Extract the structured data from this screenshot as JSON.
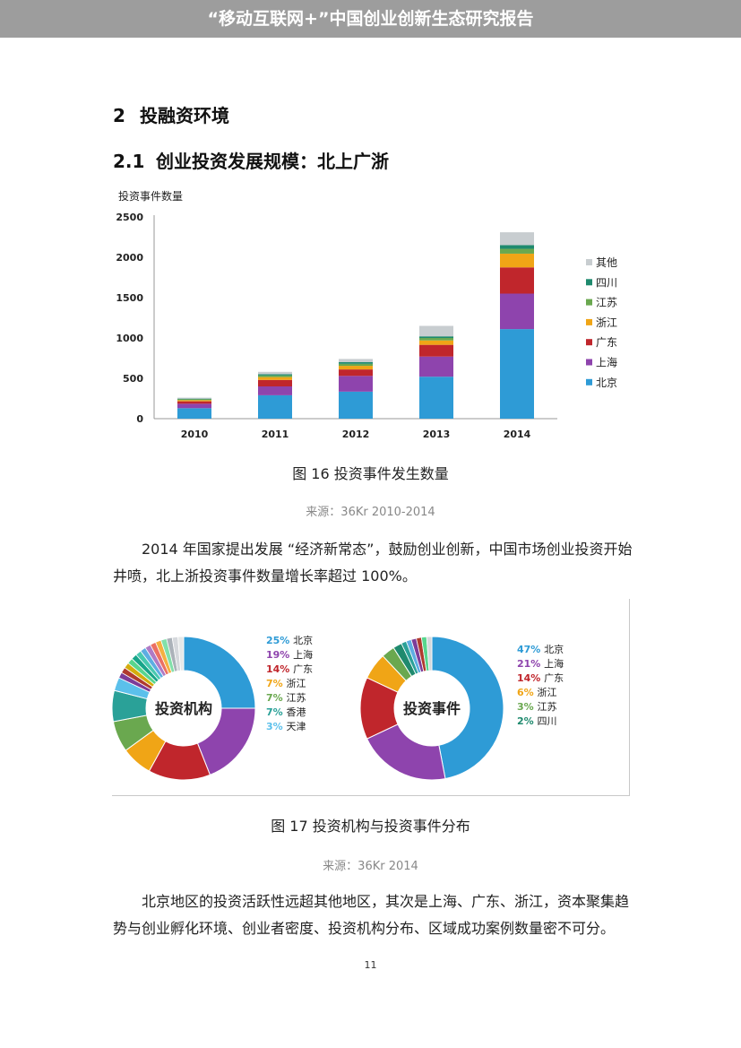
{
  "header": {
    "title": "“移动互联网+”中国创业创新生态研究报告"
  },
  "section": {
    "number": "2",
    "title": "投融资环境"
  },
  "subsection": {
    "number": "2.1",
    "title": "创业投资发展规模：北上广浙"
  },
  "fig16": {
    "caption": "图 16  投资事件发生数量",
    "source": "来源：36Kr 2010-2014"
  },
  "para1": "2014 年国家提出发展 “经济新常态”，鼓励创业创新，中国市场创业投资开始井喷，北上浙投资事件数量增长率超过 100%。",
  "fig17": {
    "caption": "图 17  投资机构与投资事件分布",
    "source": "来源：36Kr 2014"
  },
  "para2": "北京地区的投资活跃性远超其他地区，其次是上海、广东、浙江，资本聚集趋势与创业孵化环境、创业者密度、投资机构分布、区域成功案例数量密不可分。",
  "page_number": "11",
  "chart_data": [
    {
      "type": "bar",
      "stacked": true,
      "ylabel": "投资事件数量",
      "ylim": [
        0,
        2500
      ],
      "yticks": [
        0,
        500,
        1000,
        1500,
        2000,
        2500
      ],
      "categories": [
        "2010",
        "2011",
        "2012",
        "2013",
        "2014"
      ],
      "legend_position": "right",
      "series": [
        {
          "name": "北京",
          "color": "#2e9bd6",
          "values": [
            130,
            290,
            335,
            520,
            1110
          ]
        },
        {
          "name": "上海",
          "color": "#8e44ad",
          "values": [
            55,
            110,
            195,
            250,
            440
          ]
        },
        {
          "name": "广东",
          "color": "#c0262c",
          "values": [
            30,
            80,
            80,
            145,
            325
          ]
        },
        {
          "name": "浙江",
          "color": "#f0a516",
          "values": [
            15,
            35,
            45,
            55,
            170
          ]
        },
        {
          "name": "江苏",
          "color": "#6aa84f",
          "values": [
            10,
            20,
            25,
            30,
            60
          ]
        },
        {
          "name": "四川",
          "color": "#1f8a6e",
          "values": [
            8,
            15,
            20,
            20,
            45
          ]
        },
        {
          "name": "其他",
          "color": "#c8cdd0",
          "values": [
            12,
            30,
            40,
            130,
            160
          ]
        }
      ]
    },
    {
      "type": "pie",
      "donut": true,
      "center_label": "投资机构",
      "slices": [
        {
          "label": "北京",
          "percent_label": "25%",
          "value": 25,
          "color": "#2e9bd6"
        },
        {
          "label": "上海",
          "percent_label": "19%",
          "value": 19,
          "color": "#8e44ad"
        },
        {
          "label": "广东",
          "percent_label": "14%",
          "value": 14,
          "color": "#c0262c"
        },
        {
          "label": "浙江",
          "percent_label": "7%",
          "value": 7,
          "color": "#f0a516"
        },
        {
          "label": "江苏",
          "percent_label": "7%",
          "value": 7,
          "color": "#6aa84f"
        },
        {
          "label": "香港",
          "percent_label": "7%",
          "value": 7,
          "color": "#2aa198"
        },
        {
          "label": "天津",
          "percent_label": "3%",
          "value": 3,
          "color": "#5bc0eb"
        }
      ],
      "unlabeled_remainder": 18,
      "remainder_colors": [
        "#7d3c98",
        "#b03a2e",
        "#d4ac0d",
        "#58d68d",
        "#17a589",
        "#48c9b0",
        "#5dade2",
        "#af7ac5",
        "#ec7063",
        "#f5b041",
        "#82e0aa",
        "#abb2b9",
        "#d5d8dc",
        "#e5e8e8"
      ]
    },
    {
      "type": "pie",
      "donut": true,
      "center_label": "投资事件",
      "slices": [
        {
          "label": "北京",
          "percent_label": "47%",
          "value": 47,
          "color": "#2e9bd6"
        },
        {
          "label": "上海",
          "percent_label": "21%",
          "value": 21,
          "color": "#8e44ad"
        },
        {
          "label": "广东",
          "percent_label": "14%",
          "value": 14,
          "color": "#c0262c"
        },
        {
          "label": "浙江",
          "percent_label": "6%",
          "value": 6,
          "color": "#f0a516"
        },
        {
          "label": "江苏",
          "percent_label": "3%",
          "value": 3,
          "color": "#6aa84f"
        },
        {
          "label": "四川",
          "percent_label": "2%",
          "value": 2,
          "color": "#1f8a6e"
        }
      ],
      "unlabeled_remainder": 7,
      "remainder_colors": [
        "#2aa198",
        "#5dade2",
        "#7d3c98",
        "#b03a2e",
        "#58d68d",
        "#d5d8dc"
      ]
    }
  ]
}
